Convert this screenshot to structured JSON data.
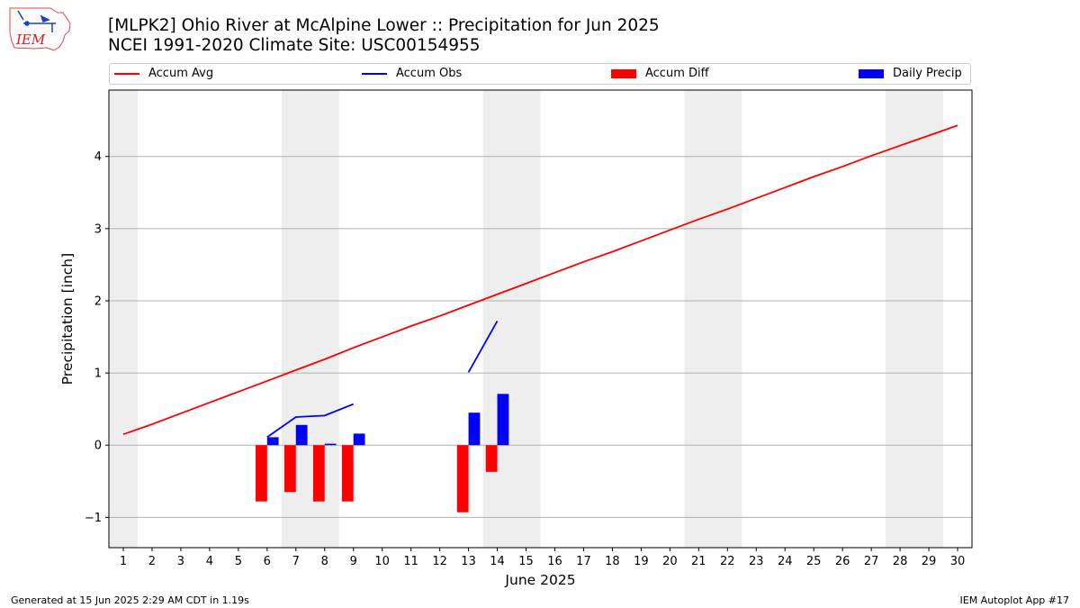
{
  "header": {
    "title_line1": "[MLPK2] Ohio River at McAlpine Lower :: Precipitation for Jun 2025",
    "title_line2": "NCEI 1991-2020 Climate Site: USC00154955",
    "logo_text": "IEM"
  },
  "footer": {
    "left": "Generated at 15 Jun 2025 2:29 AM CDT in 1.19s",
    "right": "IEM Autoplot App #17"
  },
  "colors": {
    "accum_avg": "#ff0000",
    "accum_obs": "#0000ff",
    "accum_diff": "#ff0000",
    "daily_precip": "#0000ff",
    "weekend_band": "#eeeeee",
    "grid": "#b0b0b0"
  },
  "chart_data": {
    "type": "bar",
    "xlabel": "June 2025",
    "ylabel": "Precipitation [inch]",
    "xlim": [
      0.5,
      30.5
    ],
    "ylim": [
      -1.42,
      4.92
    ],
    "yticks": [
      -1,
      0,
      1,
      2,
      3,
      4
    ],
    "x_ticks": [
      1,
      2,
      3,
      4,
      5,
      6,
      7,
      8,
      9,
      10,
      11,
      12,
      13,
      14,
      15,
      16,
      17,
      18,
      19,
      20,
      21,
      22,
      23,
      24,
      25,
      26,
      27,
      28,
      29,
      30
    ],
    "grid": "horizontal",
    "legend_placement": "top",
    "weekend_days": [
      1,
      7,
      8,
      14,
      15,
      21,
      22,
      28,
      29
    ],
    "series": [
      {
        "name": "Accum Avg",
        "type": "line",
        "x": [
          1,
          2,
          3,
          4,
          5,
          6,
          7,
          8,
          9,
          10,
          11,
          12,
          13,
          14,
          15,
          16,
          17,
          18,
          19,
          20,
          21,
          22,
          23,
          24,
          25,
          26,
          27,
          28,
          29,
          30
        ],
        "values": [
          0.15,
          0.29,
          0.44,
          0.59,
          0.74,
          0.89,
          1.04,
          1.19,
          1.35,
          1.5,
          1.65,
          1.79,
          1.94,
          2.09,
          2.24,
          2.39,
          2.54,
          2.68,
          2.83,
          2.98,
          3.13,
          3.27,
          3.42,
          3.57,
          3.72,
          3.86,
          4.01,
          4.15,
          4.29,
          4.43
        ]
      },
      {
        "name": "Accum Obs",
        "type": "line",
        "x": [
          6,
          7,
          8,
          9,
          13,
          14
        ],
        "values": [
          0.11,
          0.39,
          0.41,
          0.57,
          1.01,
          1.72
        ]
      },
      {
        "name": "Accum Diff",
        "type": "bar",
        "x": [
          6,
          7,
          8,
          9,
          13,
          14
        ],
        "values": [
          -0.78,
          -0.65,
          -0.78,
          -0.78,
          -0.93,
          -0.37
        ]
      },
      {
        "name": "Daily Precip",
        "type": "bar",
        "x": [
          6,
          7,
          8,
          9,
          13,
          14
        ],
        "values": [
          0.11,
          0.28,
          0.02,
          0.16,
          0.45,
          0.71
        ]
      }
    ]
  }
}
